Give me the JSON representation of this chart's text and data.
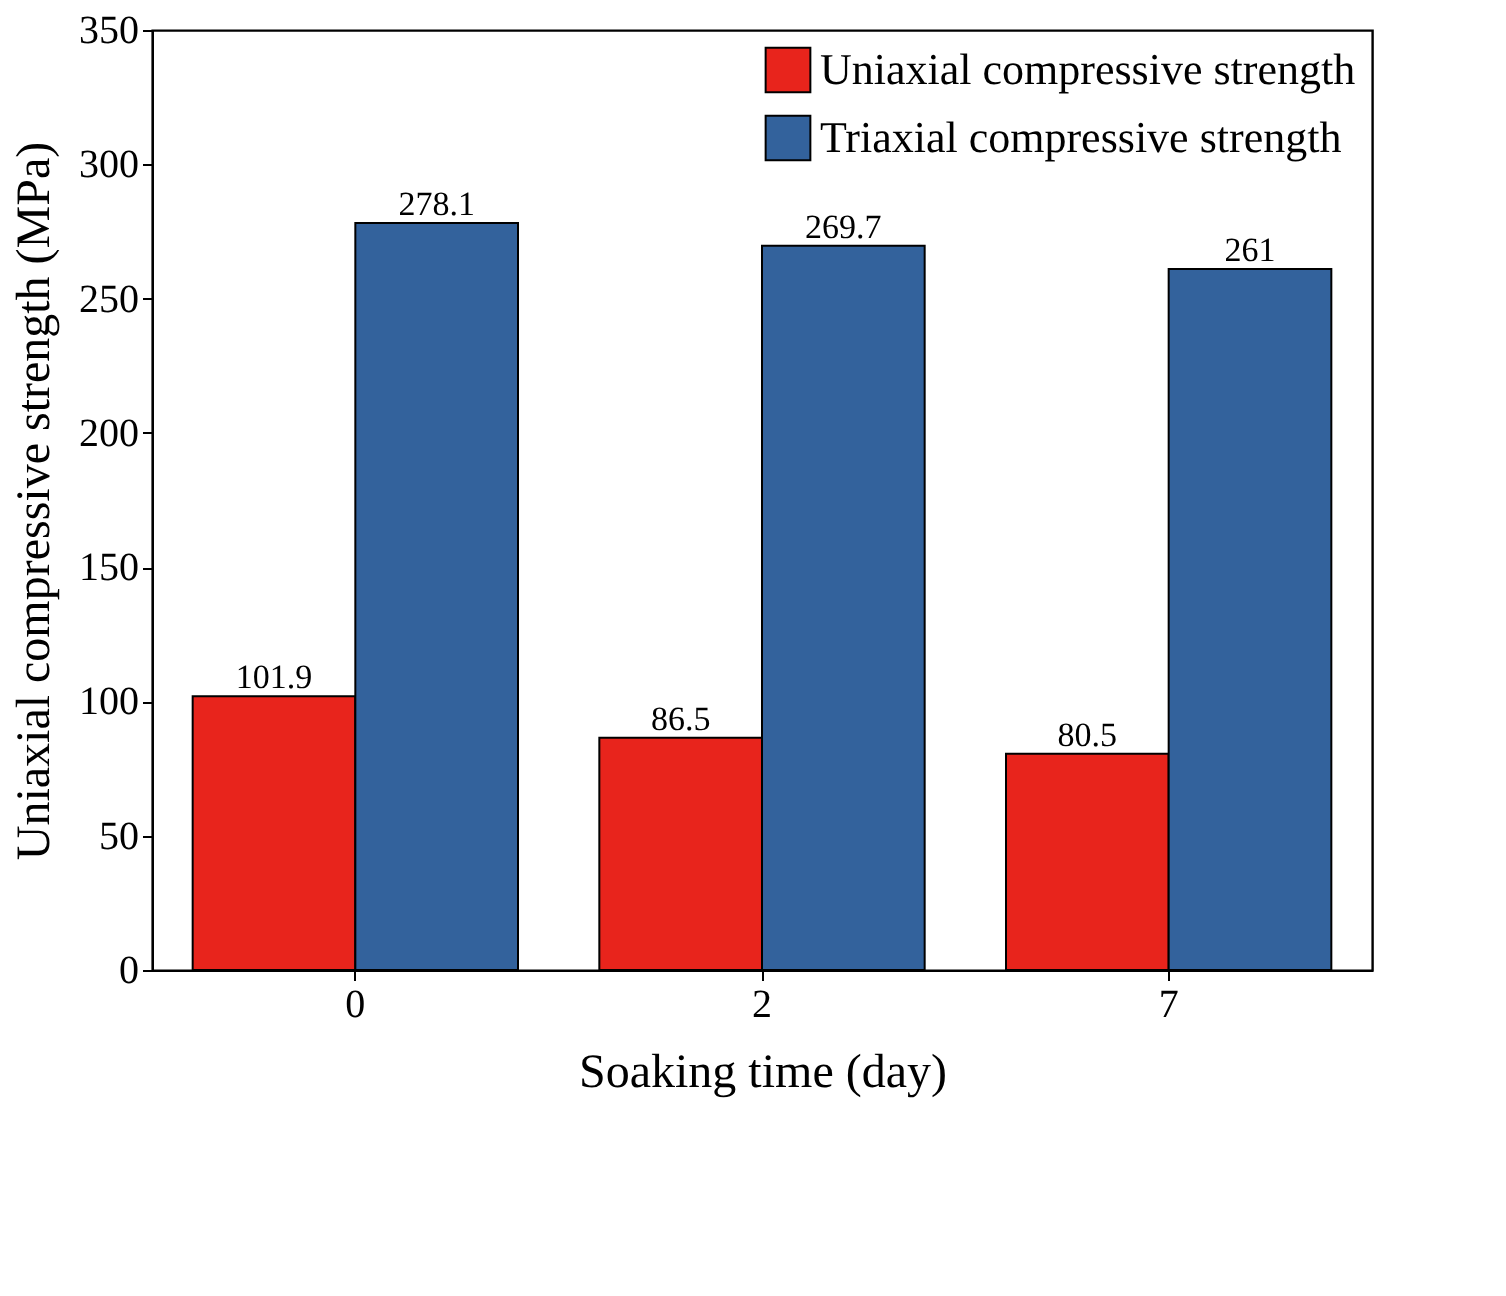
{
  "chart_data": {
    "type": "bar",
    "xlabel": "Soaking time (day)",
    "ylabel": "Uniaxial compressive strength (MPa)",
    "categories": [
      "0",
      "2",
      "7"
    ],
    "series": [
      {
        "name": "Uniaxial compressive strength",
        "color": "#e8241c",
        "values": [
          101.9,
          86.5,
          80.5
        ]
      },
      {
        "name": "Triaxial compressive strength",
        "color": "#33629c",
        "values": [
          278.1,
          269.7,
          261
        ]
      }
    ],
    "ylim": [
      0,
      350
    ],
    "yticks": [
      0,
      50,
      100,
      150,
      200,
      250,
      300,
      350
    ],
    "data_labels": true,
    "legend": "top right",
    "grid": false
  }
}
